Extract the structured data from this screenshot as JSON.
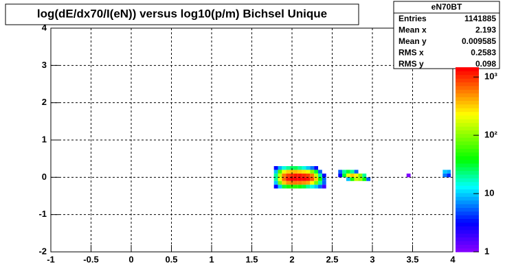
{
  "chart_data": {
    "type": "heatmap",
    "title": "log(dE/dx70/I(eN)) versus log10(p/m) Bichsel Unique",
    "xlim": [
      -1,
      4
    ],
    "xticks": [
      -1,
      -0.5,
      0,
      0.5,
      1,
      1.5,
      2,
      2.5,
      3,
      3.5,
      4
    ],
    "ylim": [
      -2,
      4
    ],
    "yticks": [
      -2,
      -1,
      0,
      1,
      2,
      3,
      4
    ],
    "zlim": [
      1,
      1470
    ],
    "zlog": true,
    "zticks": [
      1,
      10,
      {
        "value": 100,
        "label": "10²"
      },
      {
        "value": 1000,
        "label": "10³"
      }
    ],
    "grid": true,
    "x": [
      1.8,
      1.85,
      1.9,
      1.95,
      2,
      2.05,
      2.1,
      2.15,
      2.2,
      2.25,
      2.3,
      1.8,
      1.85,
      1.9,
      1.95,
      2,
      2.05,
      2.1,
      2.15,
      2.2,
      2.25,
      2.3,
      2.35,
      1.8,
      1.85,
      1.9,
      1.95,
      2,
      2.05,
      2.1,
      2.15,
      2.2,
      2.25,
      2.3,
      2.35,
      2.4,
      1.8,
      1.85,
      1.9,
      1.95,
      2,
      2.05,
      2.1,
      2.15,
      2.2,
      2.25,
      2.3,
      2.35,
      2.4,
      1.8,
      1.85,
      1.9,
      1.95,
      2,
      2.05,
      2.1,
      2.15,
      2.2,
      2.25,
      2.3,
      2.35,
      2.4,
      1.8,
      1.85,
      1.9,
      1.95,
      2,
      2.05,
      2.1,
      2.15,
      2.2,
      2.25,
      2.3,
      2.35,
      2.4,
      2.6,
      2.65,
      2.7,
      2.75,
      2.8,
      2.6,
      2.65,
      2.7,
      2.75,
      2.8,
      2.85,
      2.9,
      2.7,
      2.75,
      2.8,
      2.85,
      2.9,
      2.95,
      3.45,
      3.9,
      3.95,
      3.9,
      3.95
    ],
    "y": [
      0.25,
      0.25,
      0.25,
      0.25,
      0.25,
      0.25,
      0.25,
      0.25,
      0.25,
      0.25,
      0.25,
      0.15,
      0.15,
      0.15,
      0.15,
      0.15,
      0.15,
      0.15,
      0.15,
      0.15,
      0.15,
      0.15,
      0.15,
      0.05,
      0.05,
      0.05,
      0.05,
      0.05,
      0.05,
      0.05,
      0.05,
      0.05,
      0.05,
      0.05,
      0.05,
      0.05,
      -0.05,
      -0.05,
      -0.05,
      -0.05,
      -0.05,
      -0.05,
      -0.05,
      -0.05,
      -0.05,
      -0.05,
      -0.05,
      -0.05,
      -0.05,
      -0.15,
      -0.15,
      -0.15,
      -0.15,
      -0.15,
      -0.15,
      -0.15,
      -0.15,
      -0.15,
      -0.15,
      -0.15,
      -0.15,
      -0.15,
      -0.25,
      -0.25,
      -0.25,
      -0.25,
      -0.25,
      -0.25,
      -0.25,
      -0.25,
      -0.25,
      -0.25,
      -0.25,
      -0.25,
      -0.25,
      0.15,
      0.15,
      0.15,
      0.15,
      0.15,
      0.05,
      0.05,
      0.05,
      0.05,
      0.05,
      0.05,
      0.05,
      -0.05,
      -0.05,
      -0.05,
      -0.05,
      -0.05,
      -0.05,
      0.05,
      0.15,
      0.15,
      0.05,
      0.05
    ],
    "values": [
      3,
      8,
      15,
      20,
      25,
      25,
      20,
      15,
      10,
      6,
      3,
      10,
      60,
      200,
      300,
      350,
      350,
      320,
      280,
      200,
      100,
      30,
      5,
      20,
      150,
      600,
      900,
      1000,
      1100,
      1100,
      1000,
      900,
      600,
      150,
      20,
      3,
      20,
      200,
      700,
      1100,
      1300,
      1400,
      1400,
      1300,
      1100,
      800,
      300,
      40,
      5,
      10,
      80,
      300,
      500,
      600,
      600,
      550,
      500,
      400,
      250,
      80,
      20,
      5,
      3,
      10,
      30,
      40,
      50,
      50,
      40,
      30,
      20,
      15,
      10,
      5,
      2,
      5,
      20,
      30,
      20,
      5,
      3,
      30,
      200,
      300,
      250,
      100,
      20,
      10,
      50,
      150,
      120,
      40,
      5,
      1,
      10,
      8,
      6,
      4
    ],
    "stats": {
      "title": "eN70BT",
      "rows": [
        [
          "Entries",
          1141885
        ],
        [
          "Mean x",
          2.193
        ],
        [
          "Mean y",
          0.009585
        ],
        [
          "RMS x",
          0.2583
        ],
        [
          "RMS y",
          0.098
        ]
      ]
    }
  }
}
